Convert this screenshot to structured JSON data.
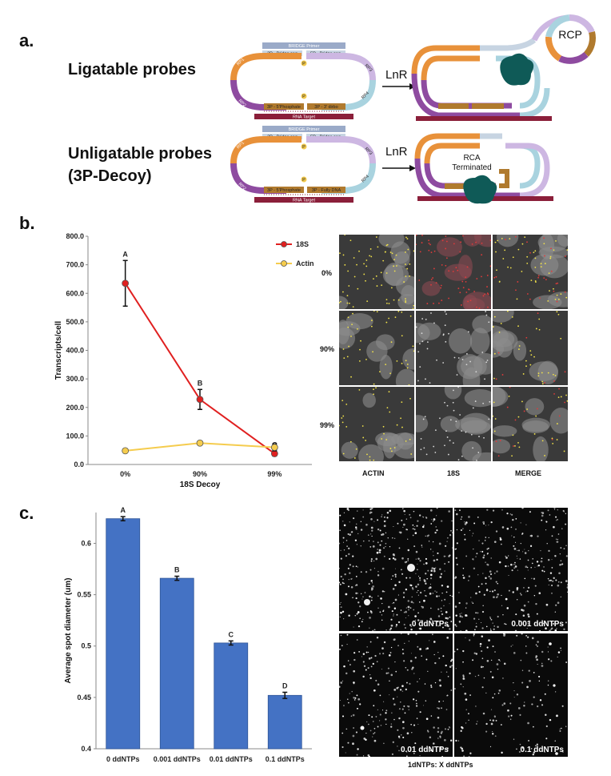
{
  "panel_a": {
    "label": "a.",
    "ligatable_title": "Ligatable probes",
    "unligatable_title_line1": "Unligatable probes",
    "unligatable_title_line2": "(3P-Decoy)",
    "lnr": "LnR",
    "rcp": "RCP",
    "rca_line1": "RCA",
    "rca_line2": "Terminated",
    "bridge_primer": "BRIDGE Primer",
    "bridge_seq_left": "3P - Bridge seq",
    "bridge_seq_right": "5P - Bridge seq",
    "bridge_seq_left2": "3P - Bridge seq",
    "bridge_seq_right2": "5P - Bridge seq",
    "phos_left": "3P - 5'Phosphate",
    "phos_right": "3P - 3' dirbo",
    "phos_right2": "3P - Fully DNA",
    "rna_target": "RNA Target",
    "p_marker": "P",
    "rp1": "RP1",
    "rp2": "RP2",
    "rp3": "RP3",
    "rp4": "RP4"
  },
  "panel_b": {
    "label": "b.",
    "row_labels": [
      "0%",
      "90%",
      "99%"
    ],
    "col_labels": [
      "ACTIN",
      "18S",
      "MERGE"
    ]
  },
  "panel_c": {
    "label": "c.",
    "micro_labels": [
      "0 ddNTPs",
      "0.001 ddNTPs",
      "0.01 ddNTPs",
      "0.1 ddNTPs"
    ],
    "micro_caption": "1dNTPs: X ddNTPs"
  },
  "colors": {
    "orange": "#e8913a",
    "purple": "#8e4ba0",
    "light_blue": "#a9d3df",
    "lavender": "#cdb7e2",
    "brown": "#b07a2e",
    "maroon": "#8b1f3a",
    "gray_blue": "#9aaac8",
    "teal": "#0f5a57",
    "red_series": "#e02020",
    "yellow_series": "#f5cc4e",
    "bar_fill": "#4472c4"
  },
  "chart_data": [
    {
      "type": "line",
      "title": "",
      "xlabel": "18S Decoy",
      "ylabel": "Transcripts/cell",
      "categories": [
        "0%",
        "90%",
        "99%"
      ],
      "ylim": [
        0,
        800
      ],
      "yticks": [
        "0.0",
        "100.0",
        "200.0",
        "300.0",
        "400.0",
        "500.0",
        "600.0",
        "700.0",
        "800.0"
      ],
      "legend_position": "top-right",
      "series": [
        {
          "name": "18S",
          "values": [
            635,
            228,
            38
          ],
          "errors": [
            80,
            35,
            8
          ],
          "letters": [
            "A",
            "B",
            "C"
          ],
          "color": "#e02020"
        },
        {
          "name": "Actin",
          "values": [
            48,
            75,
            60
          ],
          "errors": [
            0,
            0,
            12
          ],
          "color": "#f5cc4e"
        }
      ]
    },
    {
      "type": "bar",
      "title": "",
      "xlabel": "",
      "ylabel": "Average spot diameter (um)",
      "categories": [
        "0 ddNTPs",
        "0.001 ddNTPs",
        "0.01 ddNTPs",
        "0.1 ddNTPs"
      ],
      "values": [
        0.624,
        0.566,
        0.503,
        0.452
      ],
      "errors": [
        0.002,
        0.002,
        0.002,
        0.003
      ],
      "letters": [
        "A",
        "B",
        "C",
        "D"
      ],
      "ylim": [
        0.4,
        0.63
      ],
      "yticks": [
        "0.4",
        "0.45",
        "0.5",
        "0.55",
        "0.6"
      ],
      "color": "#4472c4"
    }
  ]
}
